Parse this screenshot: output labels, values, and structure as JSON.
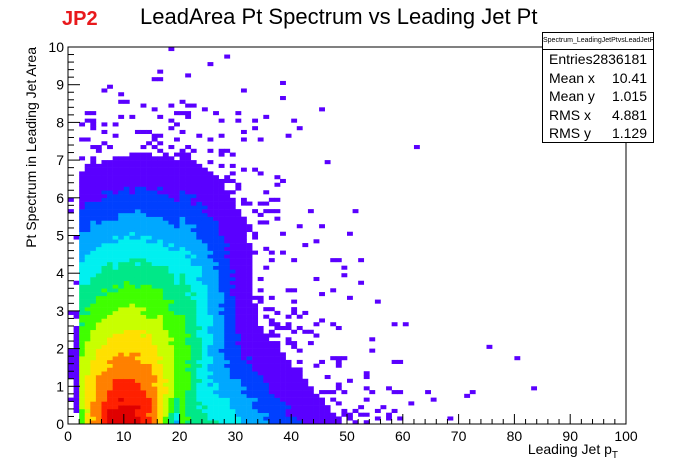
{
  "header": {
    "tag": "JP2",
    "title": "LeadArea Pt Spectrum vs Leading Jet Pt"
  },
  "stats": {
    "name": "Spectrum_LeadingJetPtvsLeadJetPt",
    "rows": [
      {
        "label": "Entries",
        "value": "2836181"
      },
      {
        "label": "Mean x",
        "value": "10.41"
      },
      {
        "label": "Mean y",
        "value": "1.015"
      },
      {
        "label": "RMS x",
        "value": "4.881"
      },
      {
        "label": "RMS y",
        "value": "1.129"
      }
    ]
  },
  "chart_data": {
    "type": "heatmap",
    "title": "LeadArea Pt Spectrum vs Leading Jet Pt",
    "xlabel": "Leading Jet p",
    "xlabel_sub": "T",
    "ylabel": "Pt Spectrum in Leading Jet Area",
    "xlim": [
      0,
      100
    ],
    "ylim": [
      0,
      10
    ],
    "x_ticks": [
      0,
      10,
      20,
      30,
      40,
      50,
      60,
      70,
      80,
      90,
      100
    ],
    "y_ticks": [
      0,
      1,
      2,
      3,
      4,
      5,
      6,
      7,
      8,
      9,
      10
    ],
    "bins_x": 100,
    "bins_y": 100,
    "colormap": [
      "#5a00ff",
      "#0040ff",
      "#00a8ff",
      "#00f0f0",
      "#00e888",
      "#40ff00",
      "#c8ff00",
      "#ffe000",
      "#ff8000",
      "#ff2000",
      "#e00000"
    ],
    "peak": {
      "x": 9,
      "y": 0.3
    },
    "grid": false,
    "legend": "none"
  }
}
